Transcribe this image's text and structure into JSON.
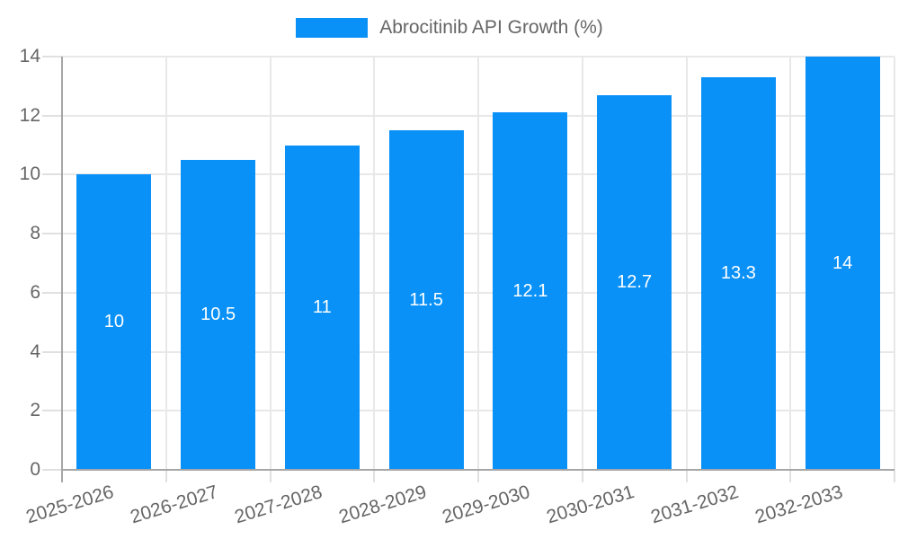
{
  "chart_data": {
    "type": "bar",
    "title": "Abrocitinib API Growth (%)",
    "legend": {
      "label": "Abrocitinib API Growth (%)",
      "position": "top"
    },
    "categories": [
      "2025-2026",
      "2026-2027",
      "2027-2028",
      "2028-2029",
      "2029-2030",
      "2030-2031",
      "2031-2032",
      "2032-2033"
    ],
    "values": [
      10,
      10.5,
      11,
      11.5,
      12.1,
      12.7,
      13.3,
      14
    ],
    "xlabel": "",
    "ylabel": "",
    "ylim": [
      0,
      14
    ],
    "yticks": [
      0,
      2,
      4,
      6,
      8,
      10,
      12,
      14
    ],
    "grid": true,
    "x_label_rotation_deg": -17,
    "value_labels_inside_bars": true,
    "colors": {
      "bar": "#0a91f8",
      "value_label": "#ffffff",
      "tick_text": "#666666",
      "gridline": "#e8e8e8",
      "tick_mark": "#e0e0e0",
      "axis": "#a6a6a6",
      "background": "#ffffff"
    }
  }
}
